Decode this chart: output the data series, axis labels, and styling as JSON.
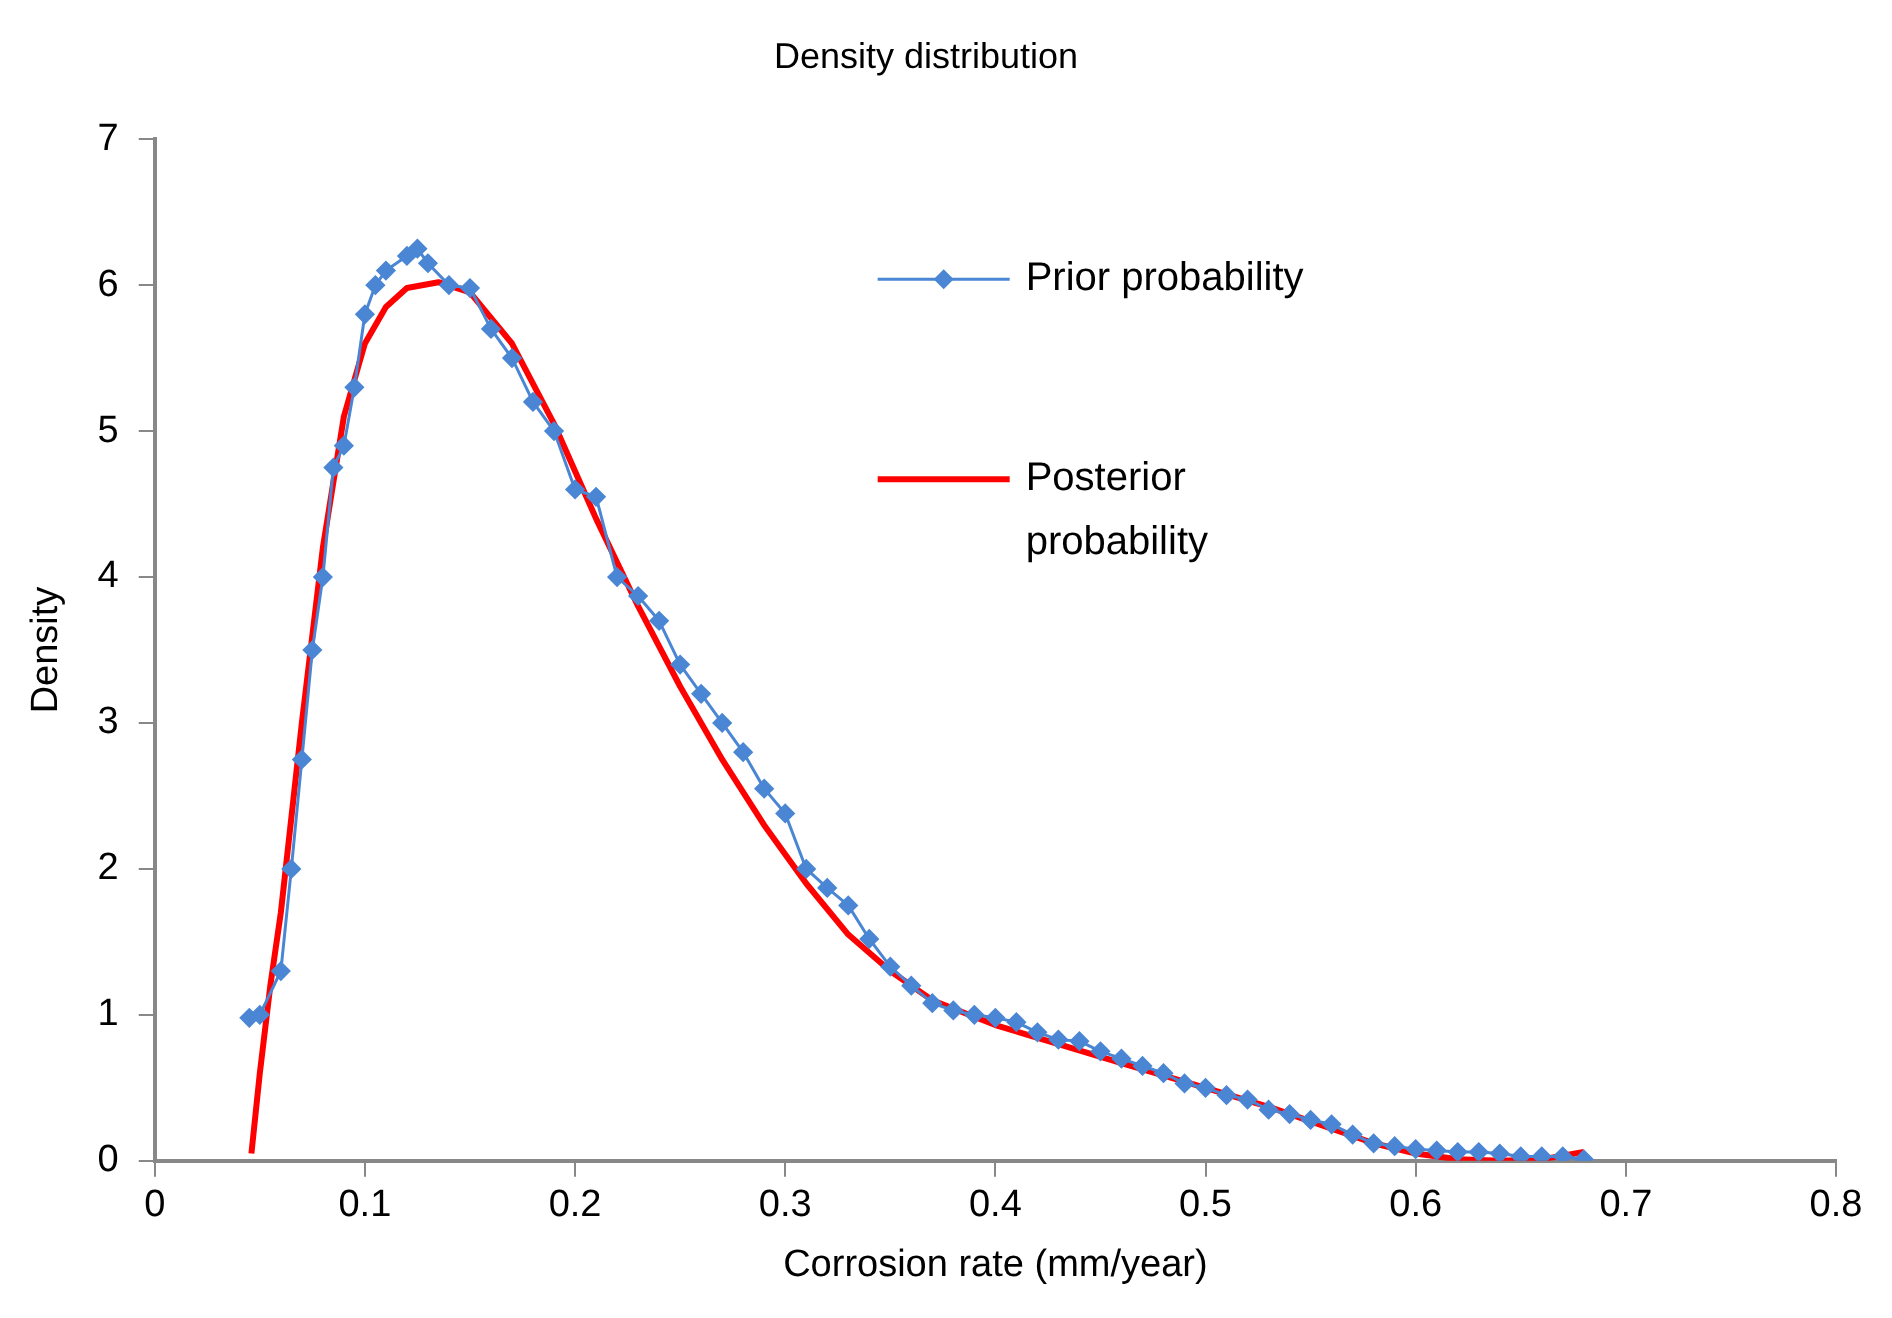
{
  "chart_data": {
    "type": "line",
    "title": "Density distribution",
    "xlabel": "Corrosion rate (mm/year)",
    "ylabel": "Density",
    "xlim": [
      0,
      0.8
    ],
    "xticks": [
      0,
      0.1,
      0.2,
      0.3,
      0.4,
      0.5,
      0.6,
      0.7,
      0.8
    ],
    "ylim": [
      0,
      7
    ],
    "yticks": [
      0,
      1,
      2,
      3,
      4,
      5,
      6,
      7
    ],
    "grid": false,
    "legend": "top right",
    "series": [
      {
        "name": "Prior probability",
        "color": "#4a86d4",
        "marker": "diamond",
        "x": [
          0.045,
          0.05,
          0.06,
          0.065,
          0.07,
          0.075,
          0.08,
          0.085,
          0.09,
          0.095,
          0.1,
          0.105,
          0.11,
          0.12,
          0.125,
          0.13,
          0.14,
          0.15,
          0.16,
          0.17,
          0.18,
          0.19,
          0.2,
          0.21,
          0.22,
          0.23,
          0.24,
          0.25,
          0.26,
          0.27,
          0.28,
          0.29,
          0.3,
          0.31,
          0.32,
          0.33,
          0.34,
          0.35,
          0.36,
          0.37,
          0.38,
          0.39,
          0.4,
          0.41,
          0.42,
          0.43,
          0.44,
          0.45,
          0.46,
          0.47,
          0.48,
          0.49,
          0.5,
          0.51,
          0.52,
          0.53,
          0.54,
          0.55,
          0.56,
          0.57,
          0.58,
          0.59,
          0.6,
          0.61,
          0.62,
          0.63,
          0.64,
          0.65,
          0.66,
          0.67,
          0.68
        ],
        "values": [
          0.98,
          1.0,
          1.3,
          2.0,
          2.75,
          3.5,
          4.0,
          4.75,
          4.9,
          5.3,
          5.8,
          6.0,
          6.1,
          6.2,
          6.25,
          6.15,
          6.0,
          5.98,
          5.7,
          5.5,
          5.2,
          5.0,
          4.6,
          4.55,
          4.0,
          3.87,
          3.7,
          3.4,
          3.2,
          3.0,
          2.8,
          2.55,
          2.38,
          2.0,
          1.87,
          1.75,
          1.52,
          1.33,
          1.2,
          1.08,
          1.03,
          1.0,
          0.98,
          0.95,
          0.88,
          0.83,
          0.82,
          0.75,
          0.7,
          0.65,
          0.6,
          0.53,
          0.5,
          0.45,
          0.42,
          0.35,
          0.32,
          0.28,
          0.25,
          0.18,
          0.12,
          0.1,
          0.08,
          0.07,
          0.06,
          0.06,
          0.05,
          0.03,
          0.03,
          0.03,
          0.01
        ]
      },
      {
        "name": "Posterior probability",
        "color": "#ff0000",
        "marker": "none",
        "x": [
          0.046,
          0.05,
          0.055,
          0.06,
          0.07,
          0.08,
          0.09,
          0.1,
          0.11,
          0.12,
          0.135,
          0.15,
          0.17,
          0.19,
          0.21,
          0.23,
          0.25,
          0.27,
          0.29,
          0.31,
          0.33,
          0.35,
          0.37,
          0.4,
          0.43,
          0.46,
          0.5,
          0.53,
          0.56,
          0.58,
          0.6,
          0.62,
          0.64,
          0.66,
          0.68
        ],
        "values": [
          0.05,
          0.6,
          1.2,
          1.7,
          3.0,
          4.2,
          5.1,
          5.6,
          5.85,
          5.98,
          6.02,
          5.95,
          5.6,
          5.05,
          4.4,
          3.8,
          3.25,
          2.75,
          2.3,
          1.9,
          1.55,
          1.3,
          1.1,
          0.93,
          0.8,
          0.67,
          0.5,
          0.37,
          0.22,
          0.12,
          0.05,
          0.01,
          0.0,
          0.01,
          0.06
        ]
      }
    ]
  }
}
